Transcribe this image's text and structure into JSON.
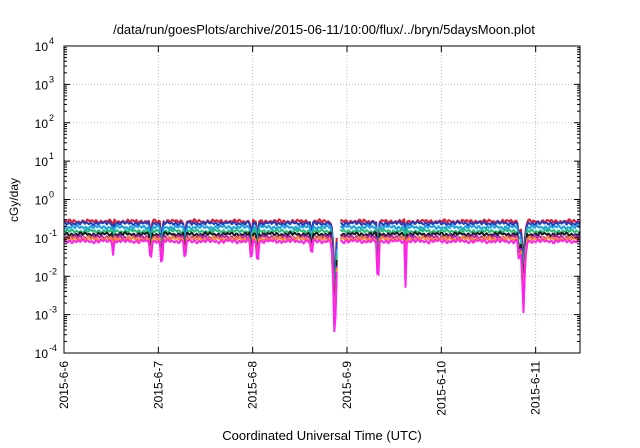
{
  "chart_data": {
    "type": "line",
    "title": "/data/run/goesPlots/archive/2015-06-11/10:00/flux/../bryn/5daysMoon.plot",
    "xlabel": "Coordinated Universal Time (UTC)",
    "ylabel": "cGy/day",
    "yscale": "log",
    "ylim": [
      0.0001,
      10000
    ],
    "xlim": [
      0,
      5.47
    ],
    "grid": true,
    "y_ticks": [
      {
        "value": 0.0001,
        "base": "10",
        "exp": "-4"
      },
      {
        "value": 0.001,
        "base": "10",
        "exp": "-3"
      },
      {
        "value": 0.01,
        "base": "10",
        "exp": "-2"
      },
      {
        "value": 0.1,
        "base": "10",
        "exp": "-1"
      },
      {
        "value": 1,
        "base": "10",
        "exp": "0"
      },
      {
        "value": 10,
        "base": "10",
        "exp": "1"
      },
      {
        "value": 100,
        "base": "10",
        "exp": "2"
      },
      {
        "value": 1000,
        "base": "10",
        "exp": "3"
      },
      {
        "value": 10000,
        "base": "10",
        "exp": "4"
      }
    ],
    "x_ticks": [
      {
        "value": 0,
        "label": "2015-6-6"
      },
      {
        "value": 1,
        "label": "2015-6-7"
      },
      {
        "value": 2,
        "label": "2015-6-8"
      },
      {
        "value": 3,
        "label": "2015-6-9"
      },
      {
        "value": 4,
        "label": "2015-6-10"
      },
      {
        "value": 5,
        "label": "2015-6-11"
      }
    ],
    "series": [
      {
        "color": "#e8162b",
        "base": 0.27
      },
      {
        "color": "#1f3fbf",
        "base": 0.24
      },
      {
        "color": "#1aa3e8",
        "base": 0.19
      },
      {
        "color": "#22c07a",
        "base": 0.15
      },
      {
        "color": "#1c1c1c",
        "base": 0.125
      },
      {
        "color": "#b020c8",
        "base": 0.105
      },
      {
        "color": "#ff8a1a",
        "base": 0.095
      },
      {
        "color": "#ff22ee",
        "base": 0.082
      }
    ],
    "dips": [
      {
        "x": 0.52,
        "factor": 0.55
      },
      {
        "x": 0.92,
        "factor": 0.5
      },
      {
        "x": 1.03,
        "factor": 0.4
      },
      {
        "x": 1.28,
        "factor": 0.5
      },
      {
        "x": 1.99,
        "factor": 0.5
      },
      {
        "x": 2.05,
        "factor": 0.45
      },
      {
        "x": 2.62,
        "factor": 0.6
      },
      {
        "x": 3.33,
        "factor": 0.2
      },
      {
        "x": 3.62,
        "factor": 0.12
      },
      {
        "x": 4.83,
        "factor": 0.45
      }
    ],
    "deep_dips": [
      {
        "x": 2.87,
        "factor": 0.005
      },
      {
        "x": 4.87,
        "factor": 0.03
      }
    ],
    "gaps": [
      [
        2.9,
        2.93
      ]
    ]
  }
}
